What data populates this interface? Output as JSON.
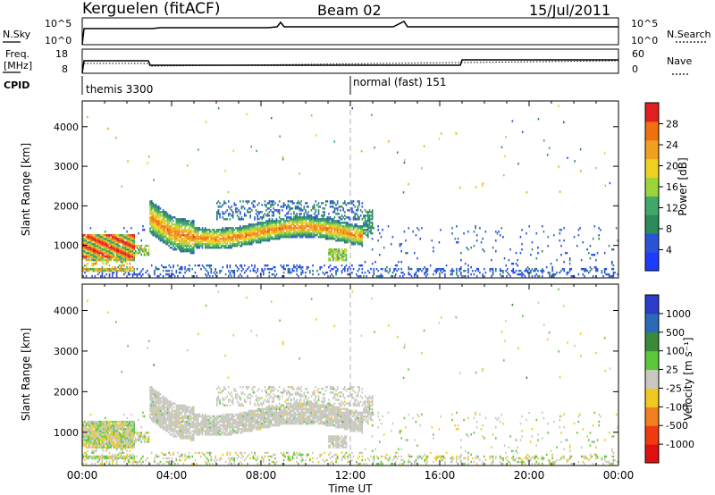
{
  "header": {
    "station": "Kerguelen (fitACF)",
    "beam": "Beam 02",
    "date": "15/Jul/2011"
  },
  "noise_panel": {
    "left_label": "N.Sky",
    "right_label": "N.Search",
    "left_ticks": [
      "10^5",
      "10^0"
    ],
    "right_ticks": [
      "10^5",
      "10^0"
    ]
  },
  "freq_panel": {
    "left_label_1": "Freq.",
    "left_label_2": "[MHz]",
    "right_label": "Nave",
    "left_ticks": [
      "18",
      "8"
    ],
    "right_ticks": [
      "60",
      "0"
    ],
    "cpid_label": "CPID"
  },
  "cpid": [
    {
      "label": "themis 3300",
      "start_hour": 0
    },
    {
      "label": "normal (fast) 151",
      "start_hour": 12
    }
  ],
  "chart_data": [
    {
      "type": "heatmap",
      "title": "Power",
      "ylabel": "Slant Range [km]",
      "xlabel": "Time UT",
      "ylim": [
        180,
        4650
      ],
      "xlim": [
        0,
        24
      ],
      "y_ticks": [
        1000,
        2000,
        3000,
        4000
      ],
      "colorbar": {
        "label": "Power [dB]",
        "range": [
          0,
          32
        ],
        "tick_values": [
          4,
          8,
          12,
          16,
          20,
          24,
          28
        ],
        "tick_labels": [
          "4",
          "8",
          "12",
          "16",
          "20",
          "24",
          "28"
        ],
        "colors": [
          "#1e3cff",
          "#2a54d8",
          "#2a8a5a",
          "#3fa86a",
          "#9ad43a",
          "#f0d020",
          "#f0a020",
          "#f07010",
          "#e02020"
        ]
      },
      "regions": [
        {
          "name": "E-region echoes",
          "time": [
            0,
            3
          ],
          "range": [
            700,
            1250
          ],
          "peak_db": 28
        },
        {
          "name": "near-range echoes",
          "time": [
            0,
            2.3
          ],
          "range": [
            300,
            700
          ],
          "peak_db": 28
        },
        {
          "name": "F-region band",
          "time": [
            3,
            12
          ],
          "range": [
            1000,
            2000
          ],
          "peak_db": 28
        },
        {
          "name": "sparse ground scatter",
          "time": [
            12,
            24
          ],
          "range": [
            200,
            1500
          ],
          "peak_db": 8
        }
      ]
    },
    {
      "type": "heatmap",
      "title": "Velocity",
      "ylabel": "Slant Range [km]",
      "xlabel": "Time UT",
      "ylim": [
        180,
        4650
      ],
      "xlim": [
        0,
        24
      ],
      "y_ticks": [
        1000,
        2000,
        3000,
        4000
      ],
      "x_tick_labels": [
        "00:00",
        "04:00",
        "08:00",
        "12:00",
        "16:00",
        "20:00",
        "00:00"
      ],
      "colorbar": {
        "label": "Velocity [m s^-1]",
        "range": [
          -1250,
          1250
        ],
        "tick_labels": [
          "1000",
          "500",
          "100",
          "25",
          "-25",
          "-100",
          "-500",
          "-1000"
        ],
        "colors": [
          "#2a3cc8",
          "#2a6ab8",
          "#3a8a3a",
          "#5ac83a",
          "#c8c8c0",
          "#f0c820",
          "#f08020",
          "#f03a10",
          "#e01010"
        ]
      },
      "regions": [
        {
          "name": "ground scatter (grey)",
          "time": [
            0,
            12
          ],
          "range": [
            300,
            2000
          ],
          "velocity": 0
        },
        {
          "name": "scattered points",
          "time": [
            0,
            24
          ],
          "range": [
            200,
            1800
          ],
          "velocity": 150
        }
      ]
    }
  ]
}
